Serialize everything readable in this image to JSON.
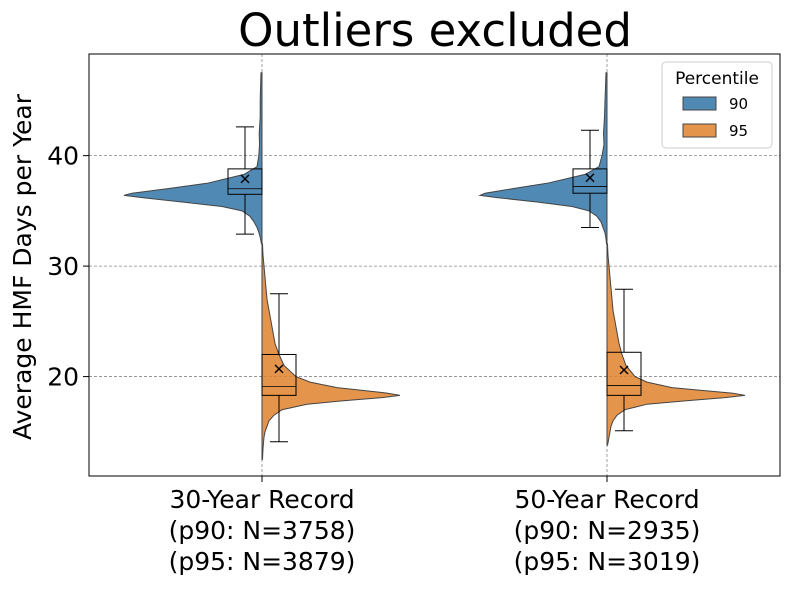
{
  "chart_data": {
    "type": "violin",
    "title": "Outliers excluded",
    "xlabel": "",
    "ylabel": "Average HMF Days per Year",
    "ylim": [
      11,
      49.2
    ],
    "yticks": [
      20,
      30,
      40
    ],
    "grid": true,
    "categories": [
      {
        "lines": [
          "30-Year Record",
          "(p90: N=3758)",
          "(p95: N=3879)"
        ]
      },
      {
        "lines": [
          "50-Year Record",
          "(p90: N=2935)",
          "(p95: N=3019)"
        ]
      }
    ],
    "legend": {
      "title": "Percentile",
      "position": "top-right",
      "entries": [
        {
          "label": "90",
          "color": "#3274a8"
        },
        {
          "label": "95",
          "color": "#e1812c"
        }
      ]
    },
    "series": [
      {
        "name": "90",
        "side": "left",
        "color": "#3274a8",
        "groups": [
          {
            "box": {
              "whisker_low": 32.9,
              "q1": 36.5,
              "median": 37.0,
              "q3": 38.8,
              "whisker_high": 42.6,
              "mean": 37.9
            },
            "density": [
              [
                47.5,
                1
              ],
              [
                45,
                1.8
              ],
              [
                43.5,
                1.8
              ],
              [
                42,
                2.8
              ],
              [
                41,
                2.5
              ],
              [
                40,
                3.2
              ],
              [
                39,
                5
              ],
              [
                38.3,
                18
              ],
              [
                37.5,
                55
              ],
              [
                37,
                95
              ],
              [
                36.6,
                130
              ],
              [
                36.4,
                138
              ],
              [
                36.2,
                120
              ],
              [
                35.8,
                80
              ],
              [
                35.4,
                40
              ],
              [
                35,
                20
              ],
              [
                34.5,
                12
              ],
              [
                34,
                8
              ],
              [
                33.5,
                5
              ],
              [
                33,
                3
              ],
              [
                32.5,
                1.5
              ],
              [
                32,
                0.5
              ]
            ]
          },
          {
            "box": {
              "whisker_low": 33.5,
              "q1": 36.6,
              "median": 37.2,
              "q3": 38.8,
              "whisker_high": 42.3,
              "mean": 38.0
            },
            "density": [
              [
                47.5,
                1
              ],
              [
                45,
                2
              ],
              [
                43.5,
                2.5
              ],
              [
                42,
                3.5
              ],
              [
                41,
                3
              ],
              [
                40,
                5
              ],
              [
                39,
                8
              ],
              [
                38.3,
                22
              ],
              [
                37.5,
                60
              ],
              [
                37,
                95
              ],
              [
                36.6,
                122
              ],
              [
                36.4,
                127
              ],
              [
                36.2,
                110
              ],
              [
                35.8,
                70
              ],
              [
                35.4,
                35
              ],
              [
                35,
                18
              ],
              [
                34.5,
                10
              ],
              [
                34,
                6
              ],
              [
                33.5,
                4
              ],
              [
                33,
                2
              ],
              [
                32.5,
                1
              ],
              [
                32,
                0.5
              ]
            ]
          }
        ]
      },
      {
        "name": "95",
        "side": "right",
        "color": "#e1812c",
        "groups": [
          {
            "box": {
              "whisker_low": 14.1,
              "q1": 18.3,
              "median": 19.1,
              "q3": 22.0,
              "whisker_high": 27.5,
              "mean": 20.7
            },
            "density": [
              [
                32,
                0.5
              ],
              [
                31,
                1
              ],
              [
                30,
                2
              ],
              [
                29,
                3
              ],
              [
                28,
                4
              ],
              [
                27,
                5
              ],
              [
                26,
                7
              ],
              [
                25,
                9
              ],
              [
                24,
                11
              ],
              [
                23,
                13
              ],
              [
                22,
                17
              ],
              [
                21,
                22
              ],
              [
                20,
                34
              ],
              [
                19.5,
                48
              ],
              [
                19,
                75
              ],
              [
                18.7,
                105
              ],
              [
                18.5,
                125
              ],
              [
                18.3,
                138
              ],
              [
                18.1,
                120
              ],
              [
                17.8,
                80
              ],
              [
                17.5,
                45
              ],
              [
                17,
                20
              ],
              [
                16.5,
                12
              ],
              [
                16,
                7
              ],
              [
                15.5,
                5
              ],
              [
                15,
                3
              ],
              [
                14.5,
                2
              ],
              [
                13.5,
                1
              ],
              [
                12.5,
                0.5
              ]
            ]
          },
          {
            "box": {
              "whisker_low": 15.1,
              "q1": 18.3,
              "median": 19.2,
              "q3": 22.2,
              "whisker_high": 27.9,
              "mean": 20.6
            },
            "density": [
              [
                32,
                0.5
              ],
              [
                31,
                1
              ],
              [
                30,
                2
              ],
              [
                29,
                3
              ],
              [
                28,
                4
              ],
              [
                27,
                5
              ],
              [
                26,
                6
              ],
              [
                25,
                8
              ],
              [
                24,
                10
              ],
              [
                23,
                12
              ],
              [
                22,
                15
              ],
              [
                21,
                19
              ],
              [
                20,
                28
              ],
              [
                19.5,
                40
              ],
              [
                19,
                65
              ],
              [
                18.7,
                100
              ],
              [
                18.5,
                125
              ],
              [
                18.3,
                138
              ],
              [
                18.1,
                118
              ],
              [
                17.8,
                78
              ],
              [
                17.5,
                40
              ],
              [
                17,
                18
              ],
              [
                16.5,
                10
              ],
              [
                16,
                6
              ],
              [
                15.5,
                4
              ],
              [
                15,
                3
              ],
              [
                14.5,
                2
              ],
              [
                14,
                1
              ],
              [
                13.8,
                0.5
              ]
            ]
          }
        ]
      }
    ]
  }
}
